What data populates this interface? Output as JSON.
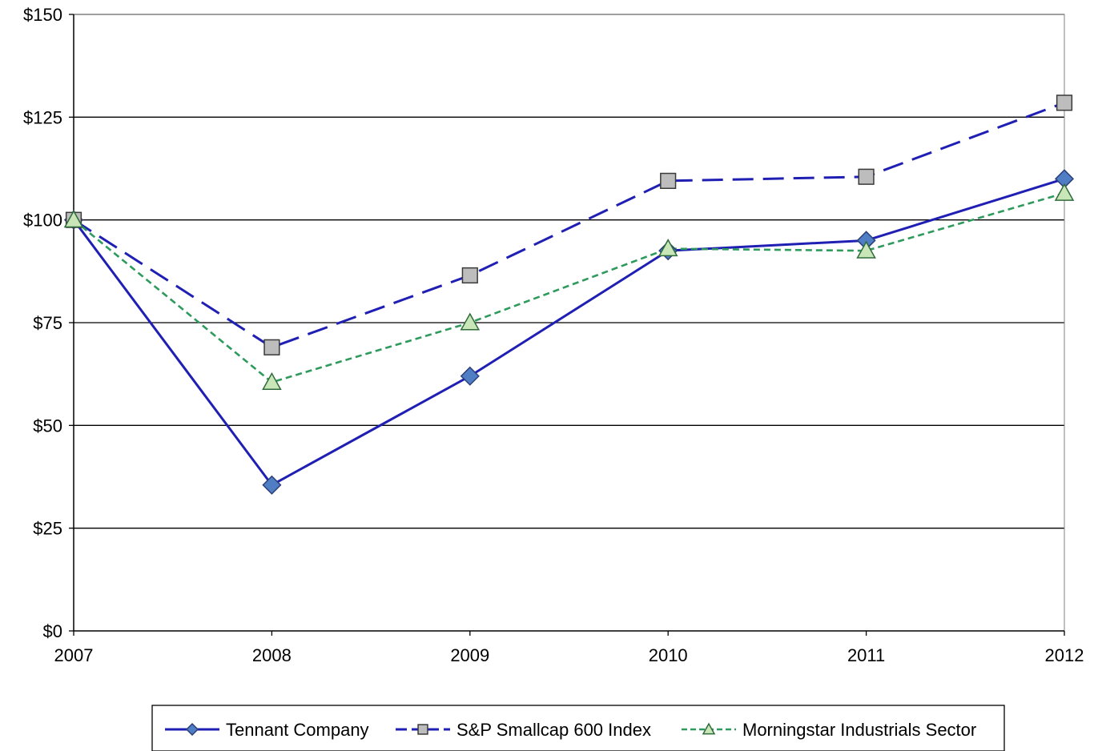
{
  "chart_data": {
    "type": "line",
    "x": [
      "2007",
      "2008",
      "2009",
      "2010",
      "2011",
      "2012"
    ],
    "ylim": [
      0,
      150
    ],
    "y_ticks": [
      {
        "value": 0,
        "label": "$0"
      },
      {
        "value": 25,
        "label": "$25"
      },
      {
        "value": 50,
        "label": "$50"
      },
      {
        "value": 75,
        "label": "$75"
      },
      {
        "value": 100,
        "label": "$100"
      },
      {
        "value": 125,
        "label": "$125"
      },
      {
        "value": 150,
        "label": "$150"
      }
    ],
    "grid": "horizontal",
    "legend_position": "bottom",
    "series": [
      {
        "name": "Tennant Company",
        "values": [
          100,
          35.5,
          62,
          92.5,
          95,
          110
        ],
        "line_color": "#1f1fb4",
        "line_style": "solid",
        "marker": "diamond",
        "marker_fill": "#4f7ec4"
      },
      {
        "name": "S&P Smallcap 600 Index",
        "values": [
          100,
          69,
          86.5,
          109.5,
          110.5,
          128.5
        ],
        "line_color": "#1f1fb4",
        "line_style": "dashed",
        "marker": "square",
        "marker_fill": "#bdbdbd"
      },
      {
        "name": "Morningstar Industrials Sector",
        "values": [
          100,
          60.5,
          75,
          93,
          92.5,
          106.5
        ],
        "line_color": "#2e9a5c",
        "line_style": "dotted",
        "marker": "triangle",
        "marker_fill": "#c8e6b8"
      }
    ]
  }
}
